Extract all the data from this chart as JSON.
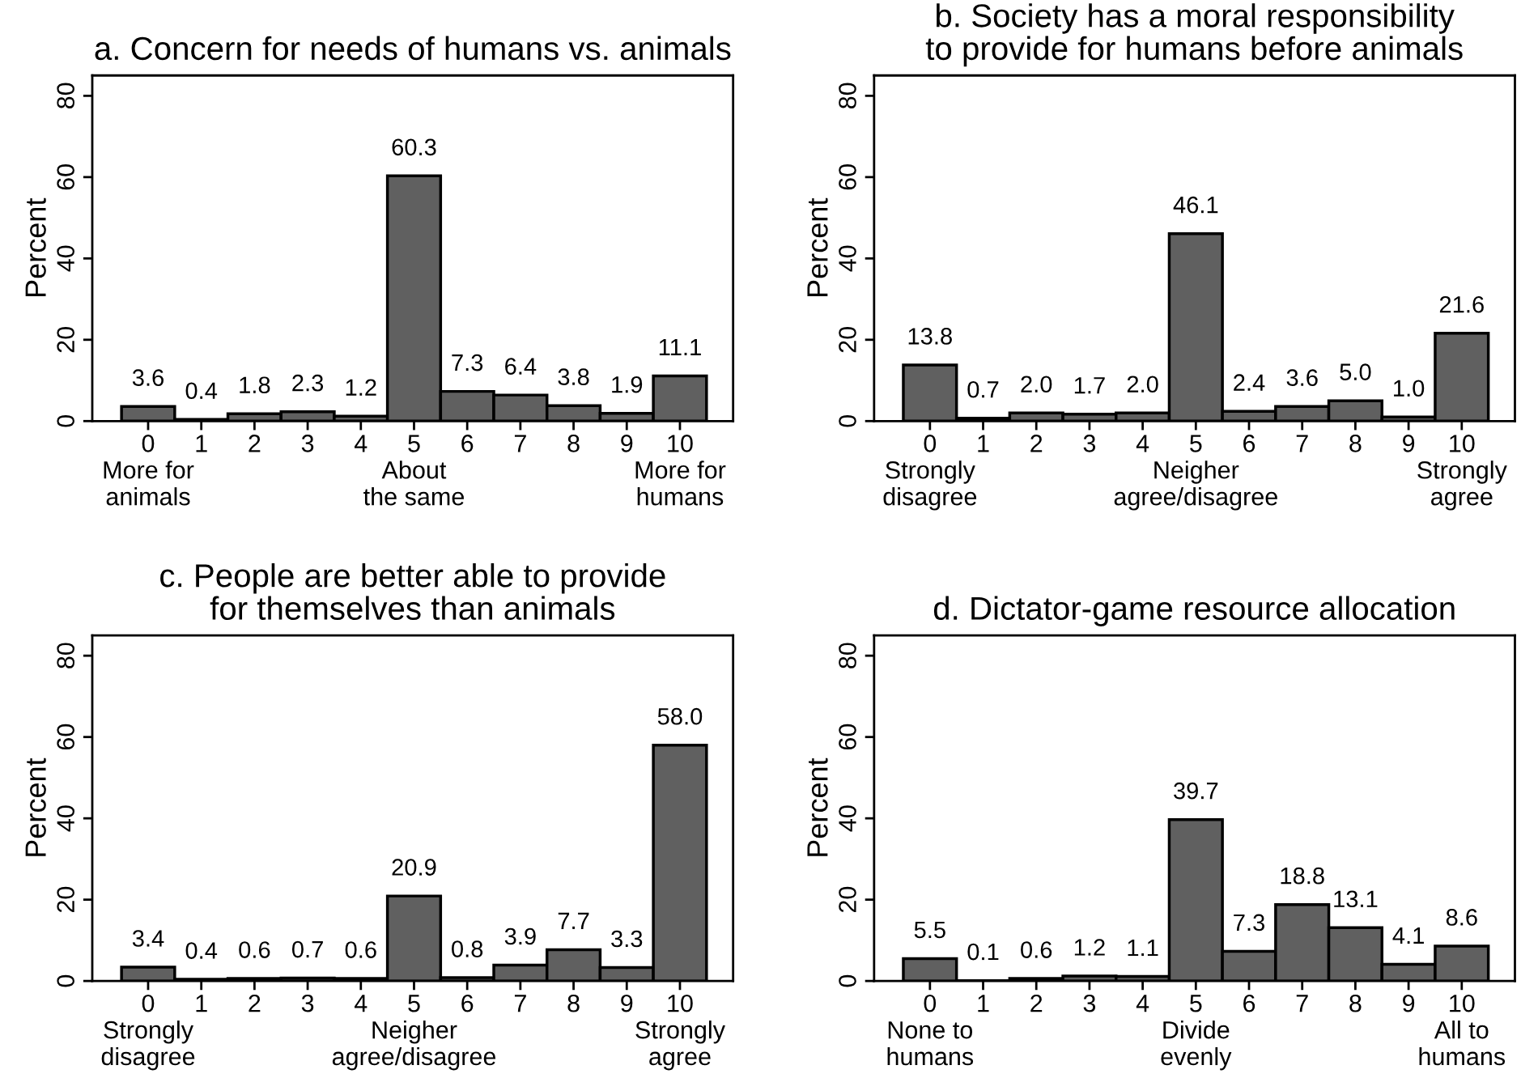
{
  "chart_data": [
    {
      "type": "bar",
      "title": "a. Concern for needs of humans vs. animals",
      "ylabel": "Percent",
      "categories": [
        "0\nMore for\nanimals",
        "1",
        "2",
        "3",
        "4",
        "5\nAbout\nthe same",
        "6",
        "7",
        "8",
        "9",
        "10\nMore for\nhumans"
      ],
      "values": [
        3.6,
        0.4,
        1.8,
        2.3,
        1.2,
        60.3,
        7.3,
        6.4,
        3.8,
        1.9,
        11.1
      ],
      "value_labels": [
        "3.6",
        "0.4",
        "1.8",
        "2.3",
        "1.2",
        "60.3",
        "7.3",
        "6.4",
        "3.8",
        "1.9",
        "11.1"
      ],
      "color": "#606060",
      "ylim": [
        0,
        85
      ],
      "yticks": [
        0,
        20,
        40,
        60,
        80
      ]
    },
    {
      "type": "bar",
      "title": "b. Society has a moral responsibility\nto provide for humans before animals",
      "ylabel": "Percent",
      "categories": [
        "0\nStrongly\ndisagree",
        "1",
        "2",
        "3",
        "4",
        "5\nNeigher\nagree/disagree",
        "6",
        "7",
        "8",
        "9",
        "10\nStrongly\nagree"
      ],
      "values": [
        13.8,
        0.7,
        2.0,
        1.7,
        2.0,
        46.1,
        2.4,
        3.6,
        5.0,
        1.0,
        21.6
      ],
      "value_labels": [
        "13.8",
        "0.7",
        "2.0",
        "1.7",
        "2.0",
        "46.1",
        "2.4",
        "3.6",
        "5.0",
        "1.0",
        "21.6"
      ],
      "color": "#606060",
      "ylim": [
        0,
        85
      ],
      "yticks": [
        0,
        20,
        40,
        60,
        80
      ]
    },
    {
      "type": "bar",
      "title": "c. People are better able to provide\nfor themselves than animals",
      "ylabel": "Percent",
      "categories": [
        "0\nStrongly\ndisagree",
        "1",
        "2",
        "3",
        "4",
        "5\nNeigher\nagree/disagree",
        "6",
        "7",
        "8",
        "9",
        "10\nStrongly\nagree"
      ],
      "values": [
        3.4,
        0.4,
        0.6,
        0.7,
        0.6,
        20.9,
        0.8,
        3.9,
        7.7,
        3.3,
        58.0
      ],
      "value_labels": [
        "3.4",
        "0.4",
        "0.6",
        "0.7",
        "0.6",
        "20.9",
        "0.8",
        "3.9",
        "7.7",
        "3.3",
        "58.0"
      ],
      "color": "#606060",
      "ylim": [
        0,
        85
      ],
      "yticks": [
        0,
        20,
        40,
        60,
        80
      ]
    },
    {
      "type": "bar",
      "title": "d. Dictator-game resource allocation",
      "ylabel": "Percent",
      "categories": [
        "0\nNone to\nhumans",
        "1",
        "2",
        "3",
        "4",
        "5\nDivide\nevenly",
        "6",
        "7",
        "8",
        "9",
        "10\nAll to\nhumans"
      ],
      "values": [
        5.5,
        0.1,
        0.6,
        1.2,
        1.1,
        39.7,
        7.3,
        18.8,
        13.1,
        4.1,
        8.6
      ],
      "value_labels": [
        "5.5",
        "0.1",
        "0.6",
        "1.2",
        "1.1",
        "39.7",
        "7.3",
        "18.8",
        "13.1",
        "4.1",
        "8.6"
      ],
      "color": "#606060",
      "ylim": [
        0,
        85
      ],
      "yticks": [
        0,
        20,
        40,
        60,
        80
      ]
    }
  ]
}
